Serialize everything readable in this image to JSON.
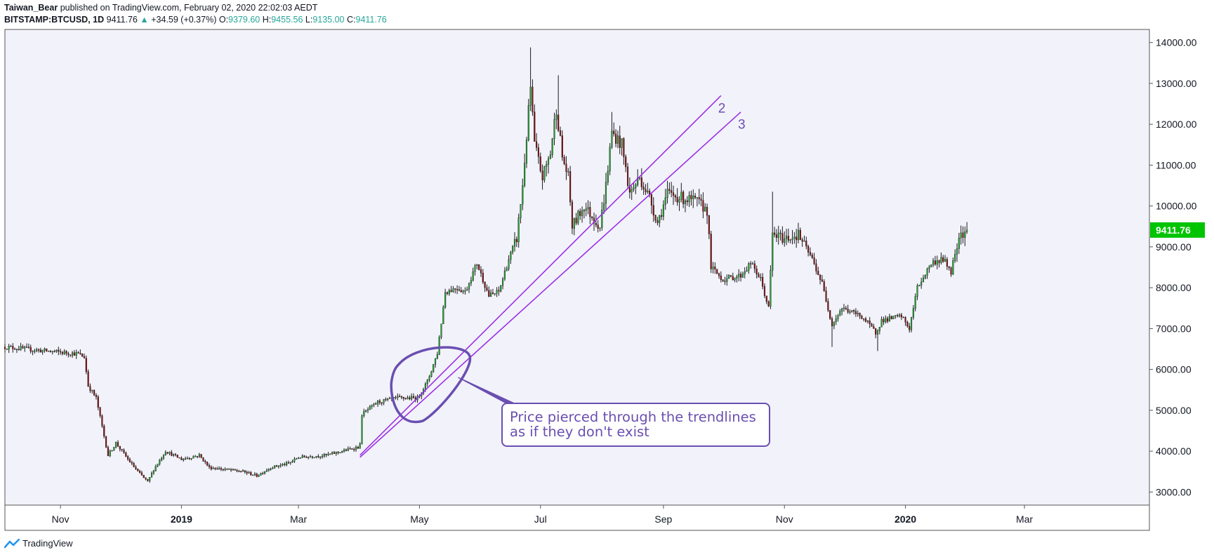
{
  "header": {
    "author": "Taiwan_Bear",
    "published_text": "published on TradingView.com, February 02, 2020 22:02:03 AEDT",
    "symbol": "BITSTAMP:BTCUSD, 1D",
    "last": "9411.76",
    "change": "+34.59 (+0.37%)",
    "o_label": "O:",
    "o_value": "9379.60",
    "h_label": "H:",
    "h_value": "9455.56",
    "l_label": "L:",
    "l_value": "9135.00",
    "c_label": "C:",
    "c_value": "9411.76"
  },
  "footer": {
    "brand": "TradingView"
  },
  "colors": {
    "plot_bg": "#f2f2fb",
    "up": "#22a831",
    "down": "#8b1010",
    "trendline": "#9b30e6",
    "annotation": "#6a4fb0",
    "price_label_bg": "#00c400"
  },
  "chart_data": {
    "type": "candlestick",
    "y_ticks": [
      "3000.00",
      "4000.00",
      "5000.00",
      "6000.00",
      "7000.00",
      "8000.00",
      "9000.00",
      "10000.00",
      "11000.00",
      "12000.00",
      "13000.00",
      "14000.00"
    ],
    "y_tick_values": [
      3000,
      4000,
      5000,
      6000,
      7000,
      8000,
      9000,
      10000,
      11000,
      12000,
      13000,
      14000
    ],
    "ylim": [
      2680,
      14320
    ],
    "x_ticks": [
      {
        "label": "Nov",
        "date": "2018-11-01",
        "bold": false
      },
      {
        "label": "2019",
        "date": "2019-01-01",
        "bold": true
      },
      {
        "label": "Mar",
        "date": "2019-03-01",
        "bold": false
      },
      {
        "label": "May",
        "date": "2019-05-01",
        "bold": false
      },
      {
        "label": "Jul",
        "date": "2019-07-01",
        "bold": false
      },
      {
        "label": "Sep",
        "date": "2019-09-01",
        "bold": false
      },
      {
        "label": "Nov",
        "date": "2019-11-01",
        "bold": false
      },
      {
        "label": "2020",
        "date": "2020-01-01",
        "bold": true
      },
      {
        "label": "Mar",
        "date": "2020-03-01",
        "bold": false
      }
    ],
    "xlim": [
      "2018-10-04",
      "2020-05-03"
    ],
    "price_path": [
      [
        "2018-10-04",
        6550
      ],
      [
        "2018-10-25",
        6450
      ],
      [
        "2018-11-01",
        6420
      ],
      [
        "2018-11-10",
        6380
      ],
      [
        "2018-11-13",
        6300
      ],
      [
        "2018-11-15",
        5600
      ],
      [
        "2018-11-19",
        5300
      ],
      [
        "2018-11-22",
        4600
      ],
      [
        "2018-11-25",
        3900
      ],
      [
        "2018-11-29",
        4200
      ],
      [
        "2018-12-05",
        3800
      ],
      [
        "2018-12-10",
        3500
      ],
      [
        "2018-12-15",
        3250
      ],
      [
        "2018-12-18",
        3550
      ],
      [
        "2018-12-24",
        4000
      ],
      [
        "2019-01-01",
        3800
      ],
      [
        "2019-01-10",
        3900
      ],
      [
        "2019-01-15",
        3600
      ],
      [
        "2019-02-01",
        3500
      ],
      [
        "2019-02-08",
        3400
      ],
      [
        "2019-02-15",
        3600
      ],
      [
        "2019-02-24",
        3700
      ],
      [
        "2019-03-01",
        3850
      ],
      [
        "2019-03-15",
        3900
      ],
      [
        "2019-03-31",
        4100
      ],
      [
        "2019-04-01",
        4150
      ],
      [
        "2019-04-02",
        4900
      ],
      [
        "2019-04-10",
        5200
      ],
      [
        "2019-04-20",
        5300
      ],
      [
        "2019-04-30",
        5300
      ],
      [
        "2019-05-05",
        5700
      ],
      [
        "2019-05-10",
        6400
      ],
      [
        "2019-05-14",
        7900
      ],
      [
        "2019-05-20",
        8000
      ],
      [
        "2019-05-24",
        7900
      ],
      [
        "2019-05-30",
        8600
      ],
      [
        "2019-06-05",
        7800
      ],
      [
        "2019-06-10",
        7900
      ],
      [
        "2019-06-15",
        8700
      ],
      [
        "2019-06-19",
        9200
      ],
      [
        "2019-06-22",
        10500
      ],
      [
        "2019-06-26",
        12900
      ],
      [
        "2019-06-28",
        11500
      ],
      [
        "2019-07-02",
        10700
      ],
      [
        "2019-07-06",
        11300
      ],
      [
        "2019-07-09",
        12400
      ],
      [
        "2019-07-12",
        11200
      ],
      [
        "2019-07-15",
        10700
      ],
      [
        "2019-07-17",
        9500
      ],
      [
        "2019-07-23",
        10000
      ],
      [
        "2019-07-31",
        9500
      ],
      [
        "2019-08-03",
        10500
      ],
      [
        "2019-08-06",
        11800
      ],
      [
        "2019-08-11",
        11500
      ],
      [
        "2019-08-15",
        10300
      ],
      [
        "2019-08-20",
        10700
      ],
      [
        "2019-08-25",
        10200
      ],
      [
        "2019-08-29",
        9600
      ],
      [
        "2019-09-03",
        10300
      ],
      [
        "2019-09-10",
        10200
      ],
      [
        "2019-09-18",
        10100
      ],
      [
        "2019-09-23",
        9900
      ],
      [
        "2019-09-25",
        8500
      ],
      [
        "2019-10-01",
        8200
      ],
      [
        "2019-10-10",
        8300
      ],
      [
        "2019-10-15",
        8600
      ],
      [
        "2019-10-20",
        8200
      ],
      [
        "2019-10-24",
        7500
      ],
      [
        "2019-10-26",
        9300
      ],
      [
        "2019-11-01",
        9200
      ],
      [
        "2019-11-08",
        9300
      ],
      [
        "2019-11-15",
        8700
      ],
      [
        "2019-11-20",
        8100
      ],
      [
        "2019-11-25",
        7100
      ],
      [
        "2019-11-30",
        7500
      ],
      [
        "2019-12-05",
        7400
      ],
      [
        "2019-12-10",
        7300
      ],
      [
        "2019-12-17",
        6900
      ],
      [
        "2019-12-20",
        7200
      ],
      [
        "2019-12-30",
        7300
      ],
      [
        "2020-01-03",
        7000
      ],
      [
        "2020-01-07",
        8000
      ],
      [
        "2020-01-14",
        8600
      ],
      [
        "2020-01-20",
        8700
      ],
      [
        "2020-01-24",
        8400
      ],
      [
        "2020-01-28",
        9300
      ],
      [
        "2020-02-01",
        9411.76
      ]
    ],
    "spikes": [
      {
        "date": "2019-06-26",
        "high": 13880
      },
      {
        "date": "2019-07-10",
        "high": 13200
      },
      {
        "date": "2019-08-06",
        "high": 12300
      },
      {
        "date": "2019-10-26",
        "high": 10350
      },
      {
        "date": "2019-12-18",
        "low": 6450
      },
      {
        "date": "2019-11-25",
        "low": 6550
      }
    ],
    "trendlines": [
      {
        "label": "2",
        "from": [
          "2019-04-01",
          3900
        ],
        "to": [
          "2019-09-30",
          12700
        ]
      },
      {
        "label": "3",
        "from": [
          "2019-04-01",
          3850
        ],
        "to": [
          "2019-10-10",
          12300
        ]
      }
    ],
    "annotation": {
      "text_line1": "Price pierced through the trendlines",
      "text_line2": "as if they don't exist",
      "circle_center": [
        "2019-05-01",
        5600
      ]
    },
    "last_price_label": "9411.76",
    "last_price": 9411.76
  }
}
